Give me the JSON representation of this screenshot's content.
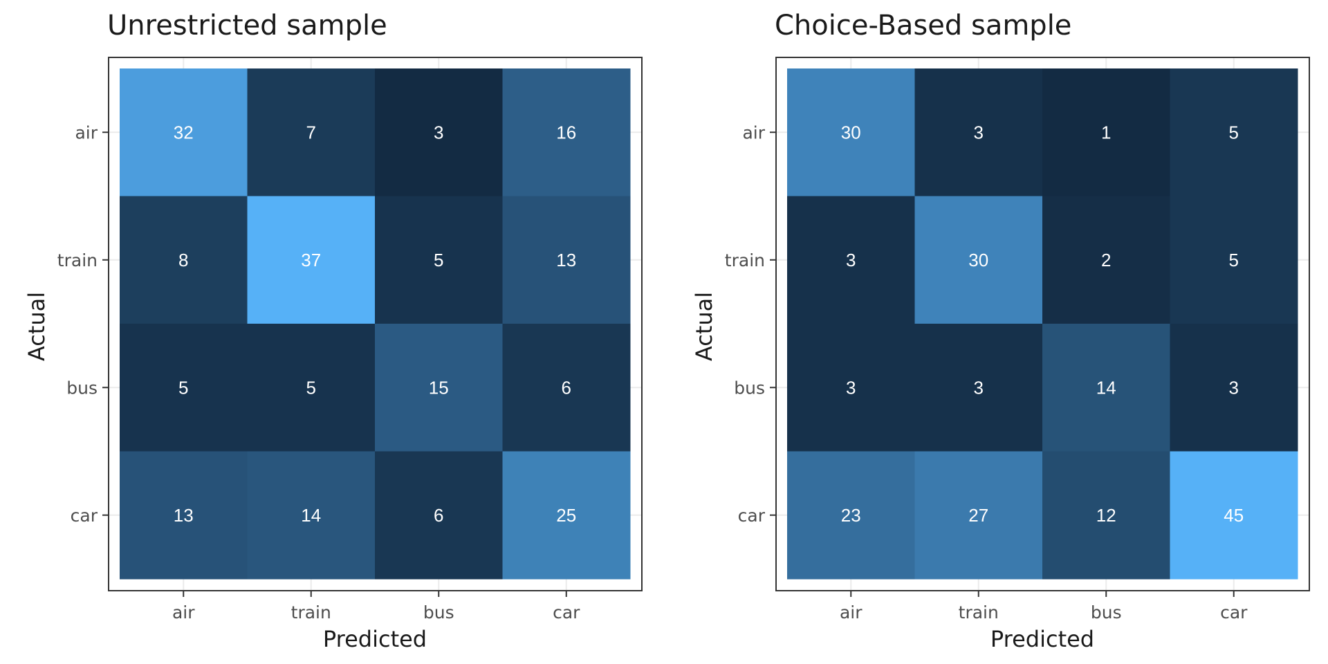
{
  "chart_data": [
    {
      "type": "heatmap",
      "title": "Unrestricted sample",
      "xlabel": "Predicted",
      "ylabel": "Actual",
      "x_categories": [
        "air",
        "train",
        "bus",
        "car"
      ],
      "y_categories": [
        "air",
        "train",
        "bus",
        "car"
      ],
      "values": [
        [
          32,
          7,
          3,
          16
        ],
        [
          8,
          37,
          5,
          13
        ],
        [
          5,
          5,
          15,
          6
        ],
        [
          13,
          14,
          6,
          25
        ]
      ],
      "color_low": "#132b43",
      "color_high": "#56b1f7",
      "grid": true
    },
    {
      "type": "heatmap",
      "title": "Choice-Based sample",
      "xlabel": "Predicted",
      "ylabel": "Actual",
      "x_categories": [
        "air",
        "train",
        "bus",
        "car"
      ],
      "y_categories": [
        "air",
        "train",
        "bus",
        "car"
      ],
      "values": [
        [
          30,
          3,
          1,
          5
        ],
        [
          3,
          30,
          2,
          5
        ],
        [
          3,
          3,
          14,
          3
        ],
        [
          23,
          27,
          12,
          45
        ]
      ],
      "color_low": "#132b43",
      "color_high": "#56b1f7",
      "grid": true
    }
  ]
}
